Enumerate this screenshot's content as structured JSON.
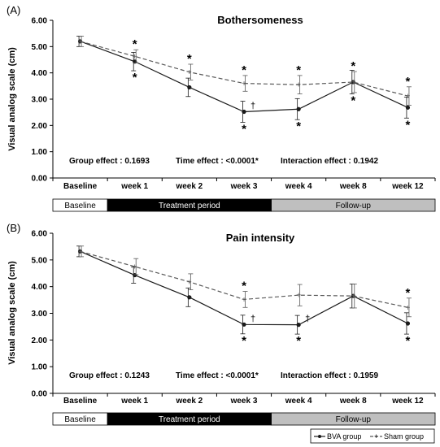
{
  "chart_data": [
    {
      "type": "line",
      "panel_label": "(A)",
      "title": "Bothersomeness",
      "ylabel": "Visual analog scale (cm)",
      "categories": [
        "Baseline",
        "week 1",
        "week 2",
        "week 3",
        "week 4",
        "week 8",
        "week 12"
      ],
      "ylim": [
        0,
        6
      ],
      "yticks": [
        "0.00",
        "1.00",
        "2.00",
        "3.00",
        "4.00",
        "5.00",
        "6.00"
      ],
      "series": [
        {
          "name": "BVA group",
          "values": [
            5.2,
            4.43,
            3.45,
            2.52,
            2.62,
            3.65,
            2.68
          ],
          "errors": [
            0.2,
            0.35,
            0.35,
            0.4,
            0.4,
            0.45,
            0.4
          ],
          "color": "#1a1a1a",
          "style": "solid"
        },
        {
          "name": "Sham group",
          "values": [
            5.2,
            4.63,
            4.03,
            3.6,
            3.55,
            3.65,
            3.12
          ],
          "errors": [
            0.2,
            0.25,
            0.3,
            0.3,
            0.35,
            0.4,
            0.35
          ],
          "color": "#595959",
          "style": "dashed"
        }
      ],
      "stars_above": [
        1,
        2,
        3,
        4,
        5,
        6
      ],
      "stars_below": [
        1,
        3,
        4,
        5,
        6
      ],
      "daggers": [
        3
      ],
      "stats": {
        "group": "Group effect : 0.1693",
        "time": "Time effect : <0.0001*",
        "interaction": "Interaction effect : 0.1942"
      },
      "periods": {
        "baseline": "Baseline",
        "treatment": "Treatment period",
        "followup": "Follow-up"
      }
    },
    {
      "type": "line",
      "panel_label": "(B)",
      "title": "Pain intensity",
      "ylabel": "Visual analog scale (cm)",
      "categories": [
        "Baseline",
        "week 1",
        "week 2",
        "week 3",
        "week 4",
        "week 8",
        "week 12"
      ],
      "ylim": [
        0,
        6
      ],
      "yticks": [
        "0.00",
        "1.00",
        "2.00",
        "3.00",
        "4.00",
        "5.00",
        "6.00"
      ],
      "series": [
        {
          "name": "BVA group",
          "values": [
            5.32,
            4.43,
            3.6,
            2.58,
            2.57,
            3.65,
            2.62
          ],
          "errors": [
            0.2,
            0.3,
            0.35,
            0.35,
            0.35,
            0.45,
            0.4
          ],
          "color": "#1a1a1a",
          "style": "solid"
        },
        {
          "name": "Sham group",
          "values": [
            5.32,
            4.75,
            4.18,
            3.52,
            3.68,
            3.65,
            3.22
          ],
          "errors": [
            0.2,
            0.3,
            0.3,
            0.3,
            0.4,
            0.45,
            0.35
          ],
          "color": "#595959",
          "style": "dashed"
        }
      ],
      "stars_above": [
        3,
        6
      ],
      "stars_below": [
        3,
        4,
        6
      ],
      "daggers": [
        3,
        4
      ],
      "stats": {
        "group": "Group effect : 0.1243",
        "time": "Time effect : <0.0001*",
        "interaction": "Interaction effect : 0.1959"
      },
      "periods": {
        "baseline": "Baseline",
        "treatment": "Treatment period",
        "followup": "Follow-up"
      }
    }
  ],
  "legend": {
    "bva": "BVA group",
    "sham": "Sham group"
  }
}
